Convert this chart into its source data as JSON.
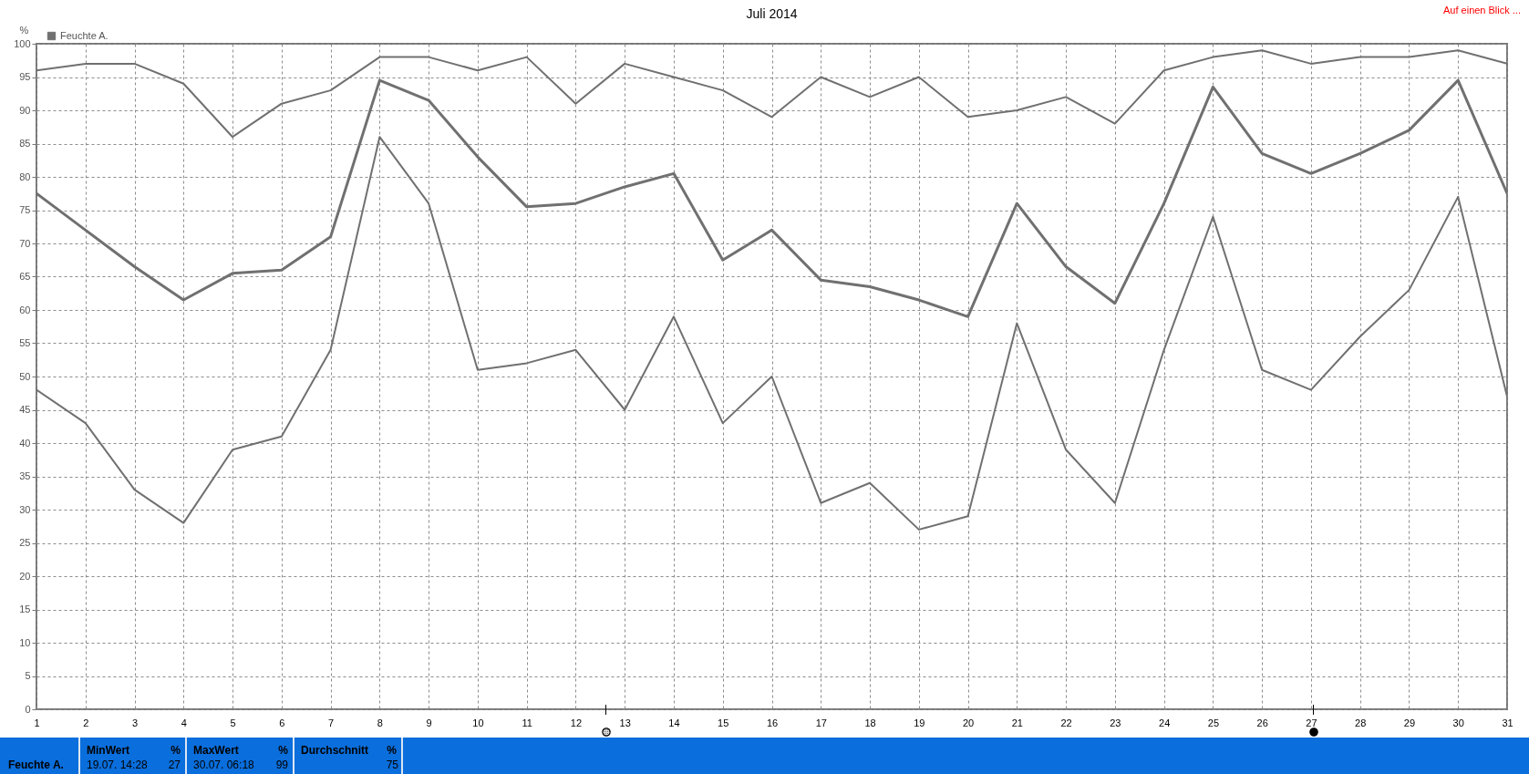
{
  "chart_data": {
    "type": "line",
    "title": "Juli 2014",
    "ylabel": "%",
    "annotations": [
      "Auf einen Blick ...",
      "Feuchte A.",
      "MinWert",
      "%",
      "19.07.  14:28",
      "27",
      "MaxWert",
      "%",
      "30.07.  06:18",
      "99",
      "Durchschnitt",
      "%",
      "75"
    ],
    "x": [
      1,
      2,
      3,
      4,
      5,
      6,
      7,
      8,
      9,
      10,
      11,
      12,
      13,
      14,
      15,
      16,
      17,
      18,
      19,
      20,
      21,
      22,
      23,
      24,
      25,
      26,
      27,
      28,
      29,
      30,
      31
    ],
    "series": [
      {
        "color": "#707070",
        "values": [
          96,
          97,
          97,
          94,
          86,
          91,
          93,
          98,
          98,
          96,
          98,
          91,
          97,
          95,
          93,
          89,
          95,
          92,
          95,
          89,
          90,
          92,
          88,
          96,
          98,
          99,
          97,
          98,
          98,
          99,
          97
        ]
      },
      {
        "name": "Feuchte A.",
        "color": "#707070",
        "values": [
          77.5,
          72,
          66.5,
          61.5,
          65.5,
          66,
          71,
          94.5,
          91.5,
          83,
          75.5,
          76,
          78.5,
          80.5,
          67.5,
          72,
          64.5,
          63.5,
          61.5,
          59,
          76,
          66.5,
          61,
          76,
          93.5,
          83.5,
          80.5,
          83.5,
          87,
          94.5,
          77.5
        ]
      },
      {
        "color": "#707070",
        "values": [
          48,
          43,
          33,
          28,
          39,
          41,
          54,
          86,
          76,
          51,
          52,
          54,
          45,
          59,
          43,
          50,
          31,
          34,
          27,
          29,
          58,
          39,
          31,
          54,
          74,
          51,
          48,
          56,
          63,
          77,
          47
        ]
      }
    ],
    "xlim": [
      1,
      31
    ],
    "xticks": [
      1,
      2,
      3,
      4,
      5,
      6,
      7,
      8,
      9,
      10,
      11,
      12,
      13,
      14,
      15,
      16,
      17,
      18,
      19,
      20,
      21,
      22,
      23,
      24,
      25,
      26,
      27,
      28,
      29,
      30,
      31
    ],
    "ylim": [
      0,
      100
    ],
    "yticks": [
      0,
      5,
      10,
      15,
      20,
      25,
      30,
      35,
      40,
      45,
      50,
      55,
      60,
      65,
      70,
      75,
      80,
      85,
      90,
      95,
      100
    ],
    "grid": true,
    "legend": "top left",
    "line_style": "solid"
  }
}
